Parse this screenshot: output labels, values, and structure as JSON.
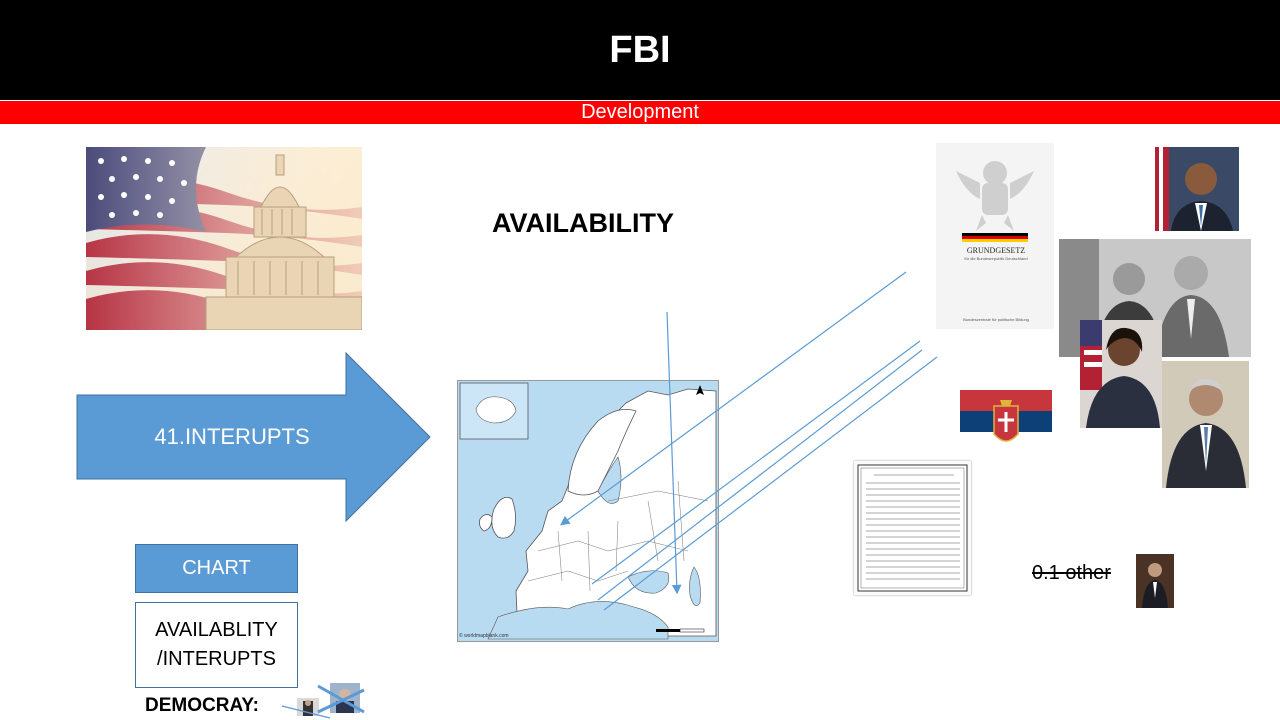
{
  "header": {
    "title": "FBI",
    "subtitle": "Development"
  },
  "heading": "AVAILABILITY",
  "arrow": {
    "label": "41.INTERUPTS"
  },
  "buttons": {
    "chart": "CHART",
    "availability_line1": "AVAILABLITY",
    "availability_line2": "/INTERUPTS"
  },
  "democray_label": "DEMOCRAY:",
  "grundgesetz": {
    "title": "GRUNDGESETZ",
    "subtitle": "für die Bundesrepublik Deutschland",
    "footer": "Bundeszentrale für politische Bildung"
  },
  "map": {
    "credit": "© worldmapblank.com"
  },
  "other_label": "0.1 other",
  "colors": {
    "header_bg": "#000000",
    "subheader_bg": "#ff0000",
    "accent_blue": "#5b9bd5",
    "border_blue": "#41719c",
    "connector_line": "#5b9bd5"
  }
}
